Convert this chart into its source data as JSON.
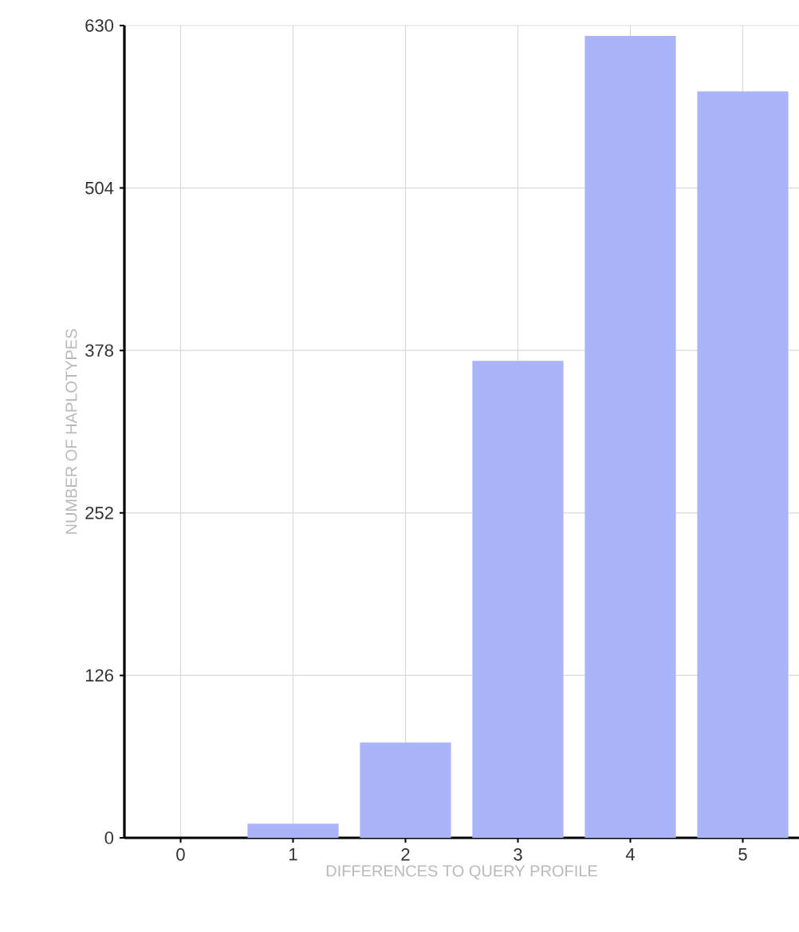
{
  "chart_data": {
    "type": "bar",
    "xlabel": "DIFFERENCES TO QUERY PROFILE",
    "ylabel": "NUMBER OF HAPLOTYPES",
    "categories": [
      "0",
      "1",
      "2",
      "3",
      "4",
      "5"
    ],
    "values": [
      0,
      11,
      74,
      370,
      622,
      579
    ],
    "color": "#aab4f8",
    "ylim": [
      0,
      630
    ],
    "yticks": [
      0,
      126,
      252,
      378,
      504,
      630
    ],
    "grid": true
  }
}
